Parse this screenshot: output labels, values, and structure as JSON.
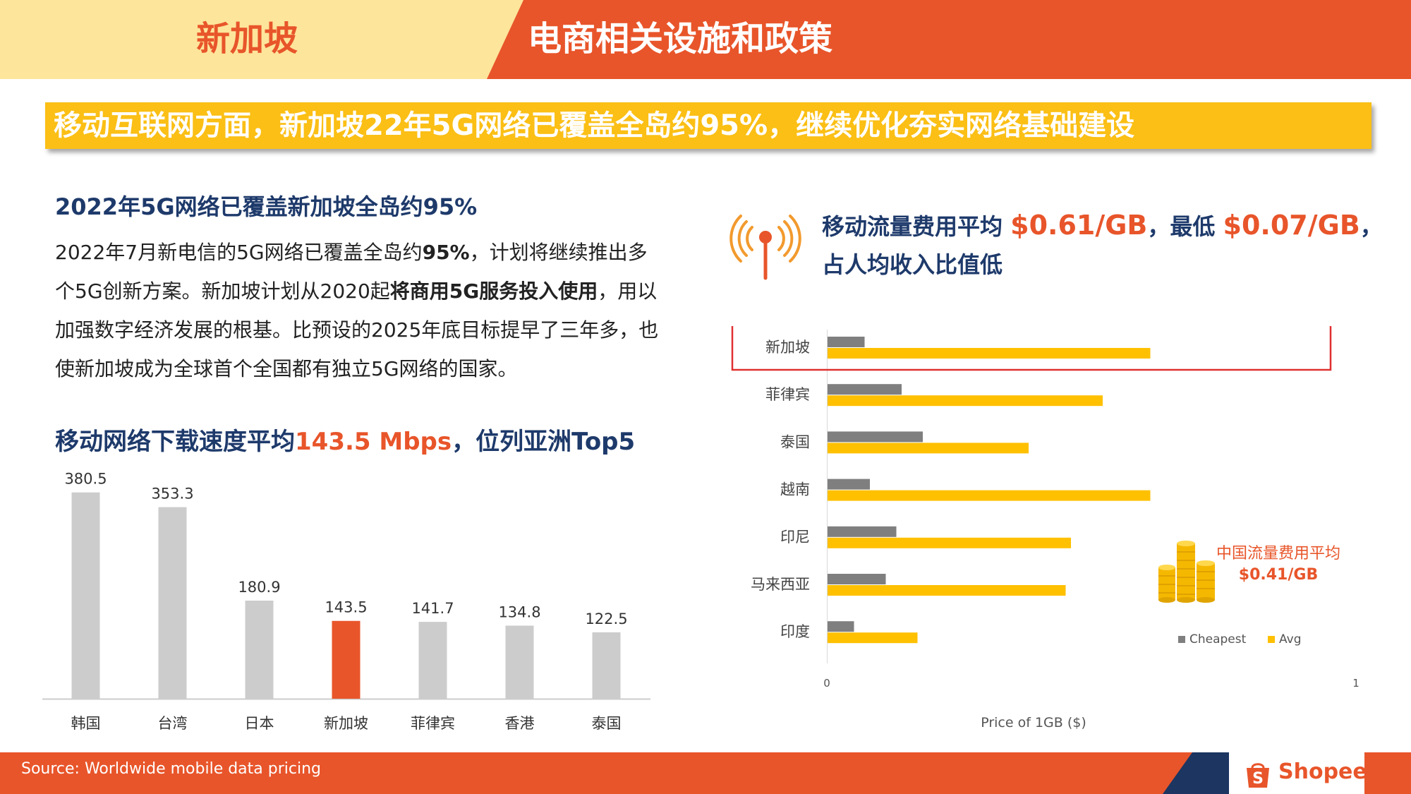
{
  "header": {
    "country": "新加坡",
    "title": "电商相关设施和政策"
  },
  "banner": {
    "text": "移动互联网方面，新加坡22年5G网络已覆盖全岛约95%，继续优化夯实网络基础建设"
  },
  "left": {
    "heading": "2022年5G网络已覆盖新加坡全岛约95%",
    "para": {
      "p1": "2022年7月新电信的5G网络已覆盖全岛约",
      "b1": "95%",
      "p2": "，计划将继续推出多个5G创新方案。新加坡计划从2020起",
      "b2": "将商用5G服务投入使用",
      "p3": "，用以加强数字经济发展的根基。比预设的2025年底目标提早了三年多，也使新加坡成为全球首个全国都有独立5G网络的国家。"
    },
    "speed_heading": {
      "pre": "移动网络下载速度平均",
      "highlight": "143.5 Mbps",
      "post": "，位列亚洲Top5"
    }
  },
  "chart_data": [
    {
      "type": "bar",
      "categories": [
        "韩国",
        "台湾",
        "日本",
        "新加坡",
        "菲律宾",
        "香港",
        "泰国"
      ],
      "values": [
        380.5,
        353.3,
        180.9,
        143.5,
        141.7,
        134.8,
        122.5
      ],
      "value_labels": [
        "380.5",
        "353.3",
        "180.9",
        "143.5",
        "141.7",
        "134.8",
        "122.5"
      ],
      "highlight_category": "新加坡",
      "colors": {
        "default": "#cccccc",
        "highlight": "#e8552a"
      },
      "ylim": [
        0,
        400
      ]
    },
    {
      "type": "bar",
      "orientation": "horizontal",
      "categories": [
        "新加坡",
        "菲律宾",
        "泰国",
        "越南",
        "印尼",
        "马来西亚",
        "印度"
      ],
      "series": [
        {
          "name": "Cheapest",
          "values": [
            0.07,
            0.14,
            0.18,
            0.08,
            0.13,
            0.11,
            0.05
          ],
          "color": "#7f7f7f"
        },
        {
          "name": "Avg",
          "values": [
            0.61,
            0.52,
            0.38,
            0.61,
            0.46,
            0.45,
            0.17
          ],
          "color": "#ffc000"
        }
      ],
      "xlabel": "Price of 1GB ($)",
      "xlim": [
        0,
        1
      ],
      "x_ticks": [
        "0",
        "1"
      ],
      "legend": "bottom-right",
      "highlight_category": "新加坡",
      "highlight_color": "#e03030"
    }
  ],
  "right": {
    "icon": "signal-tower-icon",
    "heading": {
      "p1": "移动流量费用平均 ",
      "v1": "$0.61/GB",
      "p2": "，最低 ",
      "v2": "$0.07/GB",
      "p3": "，占人均收入比值低"
    },
    "china_note": {
      "line1": "中国流量费用平均",
      "amount": "$0.41/GB"
    }
  },
  "footer": {
    "source": "Source: Worldwide mobile data pricing",
    "brand": "Shopee"
  },
  "colors": {
    "orange": "#e8552a",
    "yellow": "#fbbf15",
    "pale_yellow": "#fde59b",
    "navy": "#1e3a6b",
    "footer_navy": "#1c3561"
  }
}
